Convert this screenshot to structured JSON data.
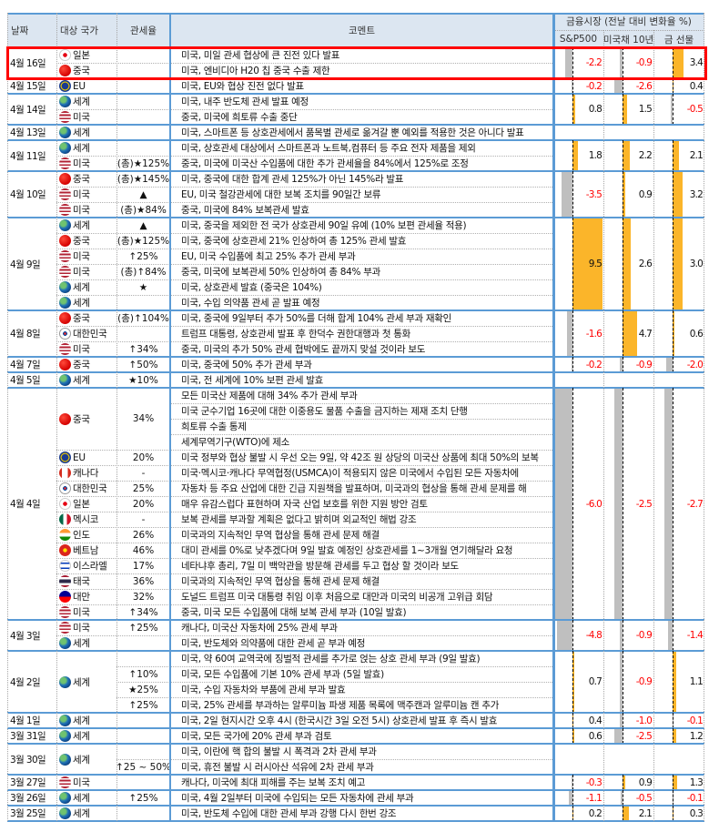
{
  "header": {
    "date": "날짜",
    "country": "대상 국가",
    "tariff": "관세율",
    "comment": "코멘트",
    "market": "금융시장 (전날 대비 변화율 %)",
    "sp500": "S&P500",
    "ust10": "미국채 10년",
    "gold": "금 선물"
  },
  "colors": {
    "accent_line": "#5b9bd5",
    "header_bg": "#dce6f1",
    "positive_bar": "#fbb52a",
    "negative_bar": "#bfbfbf",
    "negative_text": "#ff0000",
    "highlight_box": "#ff0000",
    "star_marker": "#ff0000",
    "up_marker": "#00a050"
  },
  "groups": [
    {
      "date": "4월 16일",
      "highlighted": true,
      "market": [
        -2.2,
        -0.9,
        3.4
      ],
      "entries": [
        {
          "country": "일본",
          "flag": "jp",
          "tariff": "",
          "comments": [
            "미국, 미일 관세 협상에 큰 진전 있다 발표"
          ]
        },
        {
          "country": "중국",
          "flag": "cn",
          "tariff": "",
          "comments": [
            "미국, 엔비디아 H20 칩 중국 수출 제한"
          ]
        }
      ]
    },
    {
      "date": "4월 15일",
      "market": [
        -0.2,
        -2.6,
        0.4
      ],
      "entries": [
        {
          "country": "EU",
          "flag": "eu",
          "tariff": "",
          "comments": [
            "미국, EU와 협상 진전 없다 발표"
          ]
        }
      ]
    },
    {
      "date": "4월 14일",
      "market": [
        0.8,
        1.5,
        -0.5
      ],
      "entries": [
        {
          "country": "세계",
          "flag": "world",
          "tariff": "",
          "comments": [
            "미국, 내주 반도체 관세 발표 예정"
          ]
        },
        {
          "country": "미국",
          "flag": "us",
          "tariff": "",
          "comments": [
            "중국, 미국에 희토류 수출 중단"
          ]
        }
      ]
    },
    {
      "date": "4월 13일",
      "market": null,
      "entries": [
        {
          "country": "세계",
          "flag": "world",
          "tariff": "",
          "comments": [
            "미국, 스마트폰 등 상호관세에서 품목별 관세로 옮겨갈 뿐 예외를 적용한 것은 아니다 발표"
          ]
        }
      ]
    },
    {
      "date": "4월 11일",
      "market": [
        1.8,
        2.2,
        2.1
      ],
      "entries": [
        {
          "country": "세계",
          "flag": "world",
          "tariff": "",
          "comments": [
            "미국, 상호관세 대상에서 스마트폰과 노트북,컴퓨터 등 주요 전자 제품을 제외"
          ]
        },
        {
          "country": "미국",
          "flag": "us",
          "tariff": "(총)★125%",
          "comments": [
            "중국, 미국에 미국산 수입품에 대한 추가 관세율을 84%에서 125%로 조정"
          ]
        }
      ]
    },
    {
      "date": "4월 10일",
      "market": [
        -3.5,
        0.9,
        3.2
      ],
      "entries": [
        {
          "country": "중국",
          "flag": "cn",
          "tariff": "(총)★145%",
          "comments": [
            "미국, 중국에 대한 합계 관세 125%가 아닌 145%라 발표"
          ]
        },
        {
          "country": "미국",
          "flag": "us",
          "tariff": "▲",
          "comments": [
            "EU, 미국 철강관세에 대한 보복 조치를 90일간 보류"
          ]
        },
        {
          "country": "미국",
          "flag": "us",
          "tariff": "(총)★84%",
          "comments": [
            "중국, 미국에 84% 보복관세 발효"
          ]
        }
      ]
    },
    {
      "date": "4월 9일",
      "market": [
        9.5,
        2.6,
        3.0
      ],
      "entries": [
        {
          "country": "세계",
          "flag": "world",
          "tariff": "▲",
          "comments": [
            "미국, 중국을 제외한 전 국가 상호관세 90일 유예 (10% 보편 관세율 적용)"
          ]
        },
        {
          "country": "중국",
          "flag": "cn",
          "tariff": "(총)★125%",
          "comments": [
            "미국, 중국에 상호관세 21% 인상하여 총 125% 관세 발효"
          ]
        },
        {
          "country": "미국",
          "flag": "us",
          "tariff": "↑25%",
          "comments": [
            "EU, 미국 수입품에 최고 25% 추가 관세 부과"
          ]
        },
        {
          "country": "미국",
          "flag": "us",
          "tariff": "(총)↑84%",
          "comments": [
            "중국, 미국에 보복관세 50% 인상하여 총 84% 부과"
          ]
        },
        {
          "country": "세계",
          "flag": "world",
          "tariff": "★",
          "comments": [
            "미국, 상호관세 발효 (중국은 104%)"
          ]
        },
        {
          "country": "세계",
          "flag": "world",
          "tariff": "",
          "comments": [
            "미국, 수입 의약품 관세 곧 발표 예정"
          ]
        }
      ]
    },
    {
      "date": "4월 8일",
      "market": [
        -1.6,
        4.7,
        0.6
      ],
      "entries": [
        {
          "country": "중국",
          "flag": "cn",
          "tariff": "(총)↑104%",
          "comments": [
            "미국, 중국에 9일부터 추가 50%를 더해 합계 104% 관세 부과 재확인"
          ]
        },
        {
          "country": "대한민국",
          "flag": "kr",
          "tariff": "",
          "comments": [
            "트럼프 대통령, 상호관세 발표 후 한덕수 권한대행과 첫 통화"
          ]
        },
        {
          "country": "미국",
          "flag": "us",
          "tariff": "↑34%",
          "comments": [
            "중국, 미국의 추가 50% 관세 협박에도 끝까지 맞설 것이라 보도"
          ]
        }
      ]
    },
    {
      "date": "4월 7일",
      "market": [
        -0.2,
        -0.9,
        -2.0
      ],
      "entries": [
        {
          "country": "중국",
          "flag": "cn",
          "tariff": "↑50%",
          "comments": [
            "미국, 중국에 50% 추가 관세 부과"
          ]
        }
      ]
    },
    {
      "date": "4월 5일",
      "market": null,
      "entries": [
        {
          "country": "세계",
          "flag": "world",
          "tariff": "★10%",
          "comments": [
            "미국, 전 세계에 10% 보편 관세 발효"
          ]
        }
      ]
    },
    {
      "date": "4월 4일",
      "market": [
        -6.0,
        -2.5,
        -2.7
      ],
      "entries": [
        {
          "country": "중국",
          "flag": "cn",
          "tariff": "34%",
          "comments": [
            "모든 미국산 제품에 대해 34% 추가 관세 부과",
            "미국 군수기업 16곳에 대한 이중용도 물품 수출을 금지하는 제재 조치 단행",
            "희토류 수출 통제",
            "세계무역기구(WTO)에 제소"
          ]
        },
        {
          "country": "EU",
          "flag": "eu",
          "tariff": "20%",
          "comments": [
            "미국 정부와 협상 불발 시 우선 오는 9일, 약 42조 원 상당의 미국산 상품에 최대 50%의 보복"
          ]
        },
        {
          "country": "캐나다",
          "flag": "ca",
          "tariff": "-",
          "comments": [
            "미국·멕시코·캐나다 무역협정(USMCA)이 적용되지 않은 미국에서 수입된 모든 자동차에"
          ]
        },
        {
          "country": "대한민국",
          "flag": "kr",
          "tariff": "25%",
          "comments": [
            "자동차 등 주요 산업에 대한 긴급 지원책을 발표하며, 미국과의 협상을 통해 관세 문제를 해"
          ]
        },
        {
          "country": "일본",
          "flag": "jp",
          "tariff": "20%",
          "comments": [
            "매우 유감스럽다 표현하며 자국 산업 보호를 위한 지원 방안 검토"
          ]
        },
        {
          "country": "멕시코",
          "flag": "mx",
          "tariff": "-",
          "comments": [
            "보복 관세를 부과할 계획은 없다고 밝히며 외교적인 해법 강조"
          ]
        },
        {
          "country": "인도",
          "flag": "in",
          "tariff": "26%",
          "comments": [
            "미국과의 지속적인 무역 협상을 통해 관세 문제 해결"
          ]
        },
        {
          "country": "베트남",
          "flag": "vn",
          "tariff": "46%",
          "comments": [
            "대미 관세를 0%로 낮추겠다며 9일 발효 예정인 상호관세를 1~3개월 연기해달라 요청"
          ]
        },
        {
          "country": "이스라엘",
          "flag": "il",
          "tariff": "17%",
          "comments": [
            "네타냐후 총리, 7일 미 백악관을 방문해 관세를 두고 협상 할 것이라 보도"
          ]
        },
        {
          "country": "태국",
          "flag": "th",
          "tariff": "36%",
          "comments": [
            "미국과의 지속적인 무역 협상을 통해 관세 문제 해결"
          ]
        },
        {
          "country": "대만",
          "flag": "tw",
          "tariff": "32%",
          "comments": [
            "도널드 트럼프 미국 대통령 취임 이후 처음으로 대만과 미국의 비공개 고위급 회담"
          ]
        },
        {
          "country": "미국",
          "flag": "us",
          "tariff": "↑34%",
          "comments": [
            "중국, 미국 모든 수입품에 대해 보복 관세 부과 (10일 발효)"
          ]
        }
      ]
    },
    {
      "date": "4월 3일",
      "market": [
        -4.8,
        -0.9,
        -1.4
      ],
      "entries": [
        {
          "country": "미국",
          "flag": "us",
          "tariff": "↑25%",
          "comments": [
            "캐나다, 미국산 자동차에 25% 관세 부과"
          ]
        },
        {
          "country": "세계",
          "flag": "world",
          "tariff": "",
          "comments": [
            "미국, 반도체와 의약품에 대한 관세 곧 부과 예정"
          ]
        }
      ]
    },
    {
      "date": "4월 2일",
      "market": [
        0.7,
        -0.9,
        1.1
      ],
      "entries": [
        {
          "country": "세계",
          "flag": "world",
          "tariff": [
            "",
            "↑10%",
            "★25%",
            "↑25%"
          ],
          "comments": [
            "미국, 약 60여 교역국에 징벌적 관세를 추가로 얹는 상호 관세 부과 (9일 발효)",
            "미국, 모든 수입품에 기본 10% 관세 부과 (5일 발효)",
            "미국, 수입 자동차와 부품에 관세 부과 발효",
            "미국, 25% 관세를 부과하는 알루미늄 파생 제품 목록에 맥주캔과 알루미늄 캔 추가"
          ]
        }
      ]
    },
    {
      "date": "4월 1일",
      "market": [
        0.4,
        -1.0,
        -0.1
      ],
      "entries": [
        {
          "country": "세계",
          "flag": "world",
          "tariff": "",
          "comments": [
            "미국, 2일 현지시간 오후 4시 (한국시간 3일 오전 5시) 상호관세 발표 후 즉시 발효"
          ]
        }
      ]
    },
    {
      "date": "3월 31일",
      "market": [
        0.6,
        -2.5,
        1.2
      ],
      "entries": [
        {
          "country": "세계",
          "flag": "world",
          "tariff": "",
          "comments": [
            "미국, 모든 국가에 20% 관세 부과 검토"
          ]
        }
      ]
    },
    {
      "date": "3월 30일",
      "market": null,
      "entries": [
        {
          "country": "세계",
          "flag": "world",
          "tariff": [
            "",
            "↑25 ~ 50%"
          ],
          "comments": [
            "미국, 이란에 핵 합의 불발 시 폭격과 2차 관세 부과",
            "미국, 휴전 불발 시 러시아산 석유에 2차 관세 부과"
          ]
        }
      ]
    },
    {
      "date": "3월 27일",
      "market": [
        -0.3,
        0.9,
        1.3
      ],
      "entries": [
        {
          "country": "미국",
          "flag": "us",
          "tariff": "",
          "comments": [
            "캐나다, 미국에 최대 피해를 주는 보복 조치 예고"
          ]
        }
      ]
    },
    {
      "date": "3월 26일",
      "market": [
        -1.1,
        -0.5,
        -0.1
      ],
      "entries": [
        {
          "country": "세계",
          "flag": "world",
          "tariff": "↑25%",
          "comments": [
            "미국, 4월 2일부터 미국에 수입되는 모든 자동차에 관세 부과"
          ]
        }
      ]
    },
    {
      "date": "3월 25일",
      "market": [
        0.2,
        2.1,
        0.3
      ],
      "entries": [
        {
          "country": "세계",
          "flag": "world",
          "tariff": "",
          "comments": [
            "미국, 반도체 수입에 대한 관세 부과 강행 다시 한번 강조"
          ]
        }
      ]
    }
  ]
}
